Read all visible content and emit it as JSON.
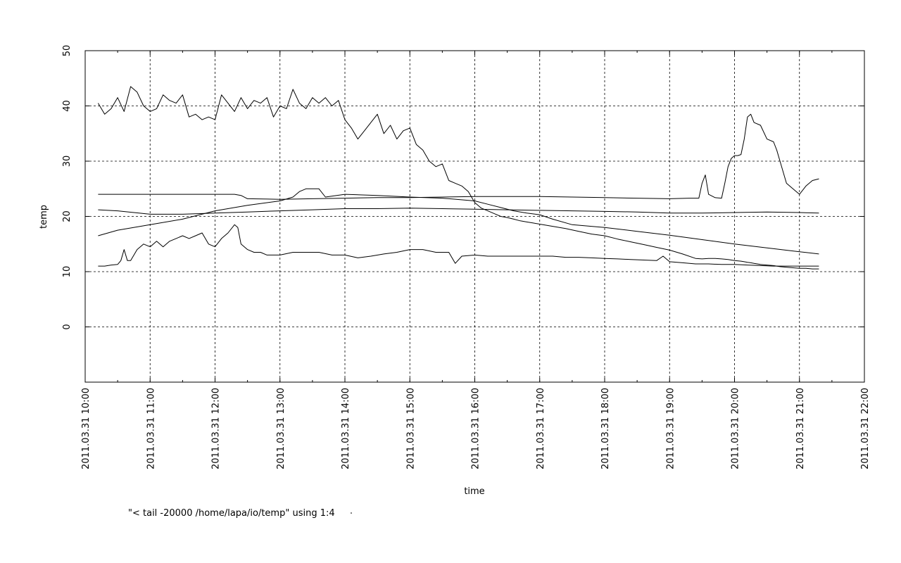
{
  "chart_data": {
    "type": "line",
    "title": "",
    "xlabel": "time",
    "ylabel": "temp",
    "ylim": [
      -10,
      50
    ],
    "xlim_hours": [
      10,
      22
    ],
    "grid": true,
    "yticks": [
      {
        "value": 0,
        "label": "0"
      },
      {
        "value": 10,
        "label": "10"
      },
      {
        "value": 20,
        "label": "20"
      },
      {
        "value": 30,
        "label": "30"
      },
      {
        "value": 40,
        "label": "40"
      },
      {
        "value": 50,
        "label": "50"
      }
    ],
    "xticks": [
      {
        "value": 10,
        "label": "2011.03.31 10:00"
      },
      {
        "value": 11,
        "label": "2011.03.31 11:00"
      },
      {
        "value": 12,
        "label": "2011.03.31 12:00"
      },
      {
        "value": 13,
        "label": "2011.03.31 13:00"
      },
      {
        "value": 14,
        "label": "2011.03.31 14:00"
      },
      {
        "value": 15,
        "label": "2011.03.31 15:00"
      },
      {
        "value": 16,
        "label": "2011.03.31 16:00"
      },
      {
        "value": 17,
        "label": "2011.03.31 17:00"
      },
      {
        "value": 18,
        "label": "2011.03.31 18:00"
      },
      {
        "value": 19,
        "label": "2011.03.31 19:00"
      },
      {
        "value": 20,
        "label": "2011.03.31 20:00"
      },
      {
        "value": 21,
        "label": "2011.03.31 21:00"
      },
      {
        "value": 22,
        "label": "2011.03.31 22:00"
      }
    ],
    "legend": {
      "placement": "bottom-left",
      "entries": [
        "\"< tail -20000 /home/lapa/io/temp\" using 1:4"
      ]
    },
    "series": [
      {
        "x": [
          10.2,
          10.3,
          10.4,
          10.5,
          10.6,
          10.7,
          10.8,
          10.9,
          11.0,
          11.1,
          11.2,
          11.3,
          11.4,
          11.5,
          11.6,
          11.7,
          11.8,
          11.9,
          12.0,
          12.1,
          12.2,
          12.3,
          12.4,
          12.5,
          12.6,
          12.7,
          12.8,
          12.9,
          13.0,
          13.1,
          13.2,
          13.3,
          13.4,
          13.5,
          13.6,
          13.7,
          13.8,
          13.9,
          14.0,
          14.1,
          14.2,
          14.3,
          14.4,
          14.5,
          14.6,
          14.7,
          14.8,
          14.9,
          15.0,
          15.1,
          15.2,
          15.3,
          15.4,
          15.5,
          15.6,
          15.7,
          15.8,
          15.9,
          16.0,
          16.1,
          16.2,
          16.3,
          16.4,
          16.5,
          16.6,
          16.7,
          16.8,
          16.9,
          17.0,
          17.2,
          17.4,
          17.6,
          17.8,
          18.0,
          18.2,
          18.4,
          18.6,
          18.8,
          19.0,
          19.2,
          19.4,
          19.5,
          19.6,
          19.7,
          19.8,
          19.9,
          20.0,
          20.1,
          20.15,
          20.2,
          20.25,
          20.3,
          20.4,
          20.5,
          20.6,
          20.65,
          20.7,
          20.8,
          20.9,
          21.0,
          21.1,
          21.2,
          21.3
        ],
        "values": [
          40.5,
          38.5,
          39.5,
          41.5,
          39,
          43.5,
          42.5,
          40,
          39,
          39.5,
          42,
          41,
          40.5,
          42,
          38,
          38.5,
          37.5,
          38,
          37.5,
          42,
          40.5,
          39,
          41.5,
          39.5,
          41,
          40.5,
          41.5,
          38,
          40,
          39.5,
          43,
          40.5,
          39.5,
          41.5,
          40.5,
          41.5,
          40,
          41,
          37.5,
          36,
          34,
          35.5,
          37,
          38.5,
          35,
          36.5,
          34,
          35.5,
          36,
          33,
          32,
          30,
          29,
          29.5,
          26.5,
          26,
          25.5,
          24.5,
          22.5,
          21.5,
          21,
          20.5,
          20,
          19.8,
          19.5,
          19.2,
          19,
          18.8,
          18.6,
          18.2,
          17.8,
          17.3,
          16.8,
          16.5,
          15.9,
          15.4,
          14.9,
          14.4,
          13.9,
          13.2,
          12.4,
          12.3,
          12.4,
          12.4,
          12.3,
          12.2,
          12.0,
          11.9,
          11.8,
          11.7,
          11.6,
          11.5,
          11.3,
          11.2,
          11.1,
          11.0,
          10.9,
          10.8,
          10.7,
          10.6,
          10.6,
          10.5,
          10.5
        ]
      },
      {
        "x": [
          10.2,
          10.5,
          11.0,
          11.5,
          12.0,
          12.3,
          12.4,
          12.5,
          13.0,
          13.5,
          14.0,
          14.5,
          15.0,
          15.5,
          16.0,
          16.5,
          17.0,
          17.5,
          18.0,
          18.5,
          19.0,
          19.3,
          19.45,
          19.5,
          19.55,
          19.6,
          19.7,
          19.8,
          19.85,
          19.9,
          19.95,
          20.0,
          20.05,
          20.1,
          20.15,
          20.2,
          20.25,
          20.3,
          20.4,
          20.5,
          20.6,
          20.65,
          20.7,
          20.8,
          20.9,
          21.0,
          21.1,
          21.2,
          21.3
        ],
        "values": [
          24,
          24,
          24,
          24,
          24,
          24,
          23.8,
          23.2,
          23.1,
          23.2,
          23.3,
          23.4,
          23.4,
          23.5,
          23.6,
          23.6,
          23.6,
          23.5,
          23.4,
          23.3,
          23.2,
          23.3,
          23.3,
          26,
          27.5,
          24,
          23.4,
          23.3,
          26,
          29,
          30.5,
          31,
          31,
          31.2,
          34,
          38,
          38.5,
          37,
          36.5,
          34,
          33.5,
          32,
          30,
          26,
          25,
          24,
          25.5,
          26.5,
          26.8
        ]
      },
      {
        "x": [
          10.2,
          10.5,
          11.0,
          11.5,
          12.0,
          12.5,
          13.0,
          13.2,
          13.3,
          13.4,
          13.5,
          13.6,
          13.7,
          14.0,
          14.5,
          15.0,
          15.5,
          16.0,
          16.2,
          16.4,
          16.6,
          16.8,
          17.0,
          17.2,
          17.5,
          18.0,
          18.5,
          19.0,
          19.5,
          20.0,
          20.5,
          21.0,
          21.3
        ],
        "values": [
          16.5,
          17.5,
          18.5,
          19.5,
          21,
          22,
          22.8,
          23.5,
          24.5,
          25,
          25,
          25,
          23.5,
          24,
          23.8,
          23.5,
          23.3,
          22.8,
          22.2,
          21.6,
          21.0,
          20.6,
          20.3,
          19.5,
          18.5,
          18.0,
          17.3,
          16.6,
          15.8,
          15.0,
          14.3,
          13.6,
          13.2
        ]
      },
      {
        "x": [
          10.2,
          10.5,
          11.0,
          11.5,
          12.0,
          12.5,
          13.0,
          13.5,
          14.0,
          14.5,
          15.0,
          15.5,
          16.0,
          16.5,
          17.0,
          17.5,
          18.0,
          18.5,
          19.0,
          19.5,
          20.0,
          20.5,
          21.0,
          21.3
        ],
        "values": [
          21.2,
          21.0,
          20.4,
          20.4,
          20.6,
          20.8,
          21.0,
          21.2,
          21.4,
          21.4,
          21.5,
          21.4,
          21.3,
          21.2,
          21.1,
          21.0,
          20.9,
          20.8,
          20.6,
          20.6,
          20.7,
          20.8,
          20.7,
          20.6
        ]
      },
      {
        "x": [
          10.2,
          10.3,
          10.4,
          10.5,
          10.55,
          10.6,
          10.65,
          10.7,
          10.8,
          10.9,
          11.0,
          11.1,
          11.2,
          11.3,
          11.4,
          11.5,
          11.6,
          11.7,
          11.8,
          11.9,
          12.0,
          12.1,
          12.2,
          12.3,
          12.35,
          12.4,
          12.5,
          12.6,
          12.7,
          12.8,
          12.9,
          13.0,
          13.2,
          13.4,
          13.6,
          13.8,
          14.0,
          14.2,
          14.4,
          14.6,
          14.8,
          15.0,
          15.2,
          15.4,
          15.6,
          15.7,
          15.8,
          16.0,
          16.2,
          16.4,
          16.6,
          16.8,
          17.0,
          17.2,
          17.4,
          17.6,
          17.8,
          18.0,
          18.2,
          18.4,
          18.6,
          18.8,
          18.9,
          19.0,
          19.2,
          19.4,
          19.6,
          19.8,
          20.0,
          20.2,
          20.4,
          20.6,
          20.8,
          21.0,
          21.3
        ],
        "values": [
          11,
          11,
          11.2,
          11.3,
          12,
          14,
          12,
          12,
          14,
          15,
          14.5,
          15.5,
          14.5,
          15.5,
          16,
          16.5,
          16,
          16.5,
          17,
          15,
          14.5,
          16,
          17,
          18.5,
          18,
          15,
          14,
          13.5,
          13.5,
          13,
          13,
          13,
          13.5,
          13.5,
          13.5,
          13,
          13,
          12.5,
          12.8,
          13.2,
          13.5,
          14,
          14,
          13.5,
          13.5,
          11.5,
          12.8,
          13,
          12.8,
          12.8,
          12.8,
          12.8,
          12.8,
          12.8,
          12.6,
          12.6,
          12.5,
          12.4,
          12.3,
          12.2,
          12.1,
          12.0,
          12.8,
          11.8,
          11.6,
          11.4,
          11.4,
          11.3,
          11.3,
          11.2,
          11.1,
          11.0,
          11.0,
          11.0,
          11.0
        ]
      }
    ]
  }
}
